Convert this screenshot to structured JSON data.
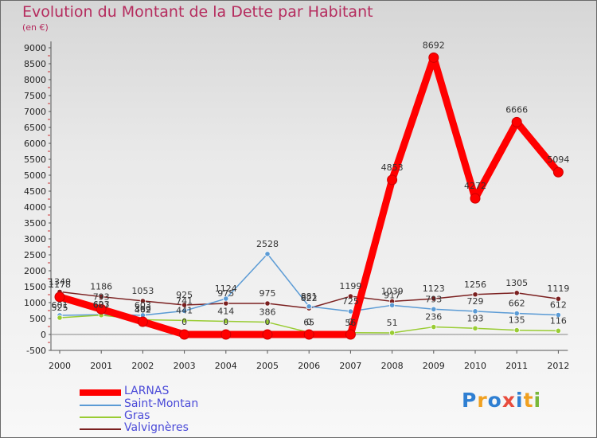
{
  "title": "Evolution du Montant de la Dette par Habitant",
  "subtitle": "(en €)",
  "logo_text": "Proxiti",
  "chart_data": {
    "type": "line",
    "title": "Evolution du Montant de la Dette par Habitant",
    "subtitle": "(en €)",
    "xlabel": "",
    "ylabel": "",
    "x": [
      "2000",
      "2001",
      "2002",
      "2003",
      "2004",
      "2005",
      "2006",
      "2007",
      "2008",
      "2009",
      "2010",
      "2011",
      "2012"
    ],
    "ylim": [
      -500,
      9000
    ],
    "yticks": [
      -500,
      0,
      500,
      1000,
      1500,
      2000,
      2500,
      3000,
      3500,
      4000,
      4500,
      5000,
      5500,
      6000,
      6500,
      7000,
      7500,
      8000,
      8500,
      9000
    ],
    "grid": false,
    "legend_position": "bottom-left",
    "series": [
      {
        "name": "LARNAS",
        "color": "#ff0000",
        "values": [
          1178,
          793,
          399,
          0,
          0,
          0,
          0,
          0,
          4853,
          8692,
          4272,
          6666,
          5094
        ]
      },
      {
        "name": "Saint-Montan",
        "color": "#5b9bd5",
        "values": [
          601,
          623,
          603,
          741,
          1124,
          2528,
          881,
          725,
          917,
          793,
          729,
          662,
          612
        ]
      },
      {
        "name": "Gras",
        "color": "#99cc33",
        "values": [
          525,
          607,
          462,
          441,
          414,
          386,
          65,
          56,
          51,
          236,
          193,
          135,
          116
        ]
      },
      {
        "name": "Valvignères",
        "color": "#7b2020",
        "values": [
          1340,
          1186,
          1053,
          925,
          975,
          975,
          822,
          1199,
          1039,
          1123,
          1256,
          1305,
          1119
        ]
      }
    ]
  }
}
